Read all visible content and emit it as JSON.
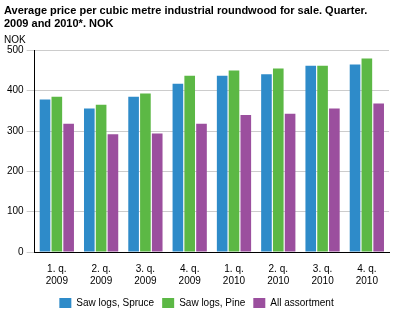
{
  "chart_data": {
    "type": "bar",
    "title": [
      "Average price per cubic metre industrial roundwood for sale. Quarter.",
      "2009 and 2010*. NOK"
    ],
    "y_label": "NOK",
    "categories": [
      [
        "1. q.",
        "2009"
      ],
      [
        "2. q.",
        "2009"
      ],
      [
        "3. q.",
        "2009"
      ],
      [
        "4. q.",
        "2009"
      ],
      [
        "1. q.",
        "2010"
      ],
      [
        "2. q.",
        "2010"
      ],
      [
        "3. q.",
        "2010"
      ],
      [
        "4. q.",
        "2010"
      ]
    ],
    "series": [
      {
        "name": "Saw logs, Spruce",
        "color": "#2e8bc9",
        "values": [
          378,
          356,
          385,
          417,
          437,
          441,
          462,
          465
        ]
      },
      {
        "name": "Saw logs, Pine",
        "color": "#5cb845",
        "values": [
          385,
          365,
          393,
          437,
          450,
          455,
          462,
          480
        ]
      },
      {
        "name": "All assortment",
        "color": "#9b4f9e",
        "values": [
          318,
          292,
          294,
          318,
          340,
          343,
          356,
          368
        ]
      }
    ],
    "ylim": [
      0,
      500
    ],
    "yticks": [
      0,
      100,
      200,
      300,
      400,
      500
    ],
    "grid": true,
    "legend": "bottom"
  }
}
